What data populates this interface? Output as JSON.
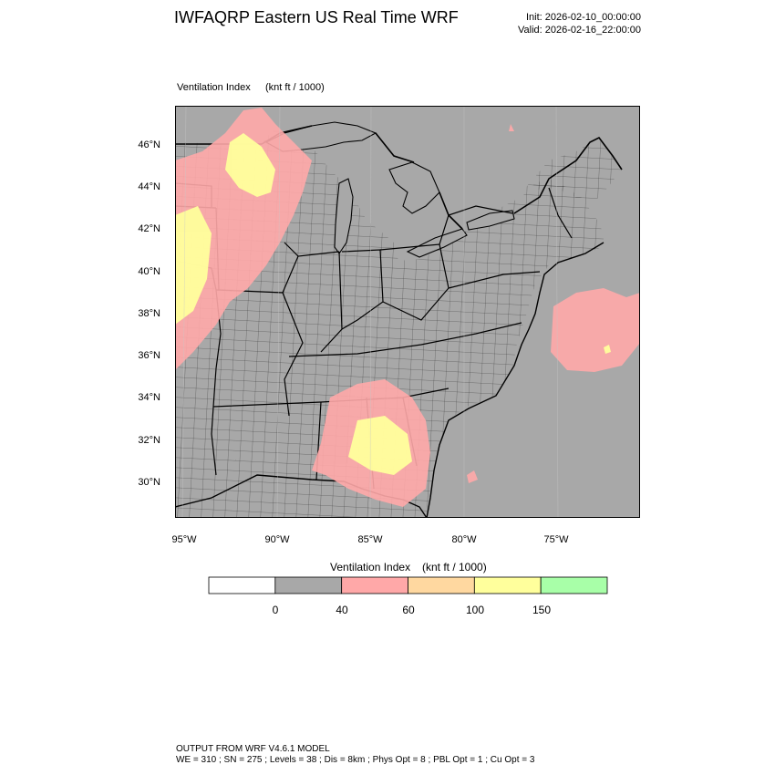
{
  "header": {
    "title": "IWFAQRP Eastern US Real Time WRF",
    "init": "Init: 2026-02-10_00:00:00",
    "valid": "Valid: 2026-02-16_22:00:00"
  },
  "field": {
    "name": "Ventilation Index",
    "units": "(knt ft / 1000)"
  },
  "map": {
    "lat_labels": [
      "46°N",
      "44°N",
      "42°N",
      "40°N",
      "38°N",
      "36°N",
      "34°N",
      "32°N",
      "30°N"
    ],
    "lon_labels": [
      "95°W",
      "90°W",
      "85°W",
      "80°W",
      "75°W"
    ],
    "background_color": "#a8a8a8",
    "boundary_color": "#000000"
  },
  "colorbar": {
    "title": "Ventilation Index",
    "units": "(knt ft / 1000)",
    "thresholds": [
      "0",
      "40",
      "60",
      "100",
      "150"
    ],
    "bins": [
      {
        "color": "#ffffff"
      },
      {
        "color": "#a8a8a8"
      },
      {
        "color": "#ffa8a8"
      },
      {
        "color": "#ffd8a0"
      },
      {
        "color": "#ffff9c"
      },
      {
        "color": "#a8ffa8"
      }
    ]
  },
  "footer": {
    "line1": "OUTPUT FROM WRF V4.6.1 MODEL",
    "line2": "WE = 310 ; SN = 275 ; Levels = 38 ; Dis = 8km ; Phys Opt = 8 ; PBL Opt = 1 ; Cu Opt = 3"
  }
}
